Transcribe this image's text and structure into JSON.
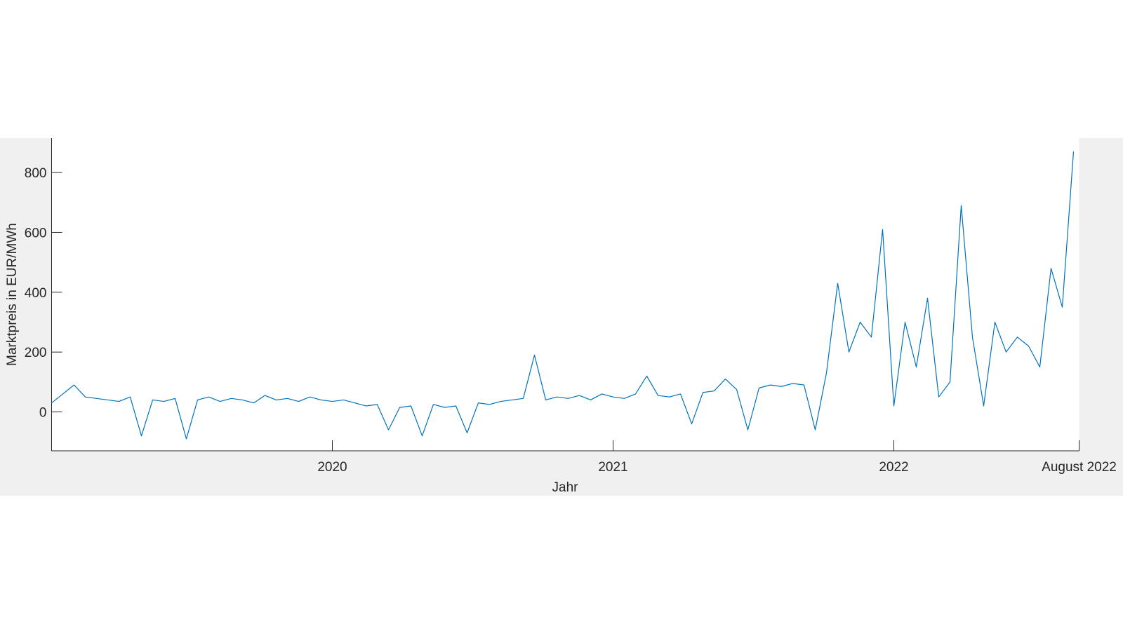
{
  "chart_data": {
    "type": "line",
    "xlabel": "Jahr",
    "ylabel": "Marktpreis in EUR/MWh",
    "x": [
      2019.0,
      2019.04,
      2019.08,
      2019.12,
      2019.16,
      2019.2,
      2019.24,
      2019.28,
      2019.32,
      2019.36,
      2019.4,
      2019.44,
      2019.48,
      2019.52,
      2019.56,
      2019.6,
      2019.64,
      2019.68,
      2019.72,
      2019.76,
      2019.8,
      2019.84,
      2019.88,
      2019.92,
      2019.96,
      2020.0,
      2020.04,
      2020.08,
      2020.12,
      2020.16,
      2020.2,
      2020.24,
      2020.28,
      2020.32,
      2020.36,
      2020.4,
      2020.44,
      2020.48,
      2020.52,
      2020.56,
      2020.6,
      2020.64,
      2020.68,
      2020.72,
      2020.76,
      2020.8,
      2020.84,
      2020.88,
      2020.92,
      2020.96,
      2021.0,
      2021.04,
      2021.08,
      2021.12,
      2021.16,
      2021.2,
      2021.24,
      2021.28,
      2021.32,
      2021.36,
      2021.4,
      2021.44,
      2021.48,
      2021.52,
      2021.56,
      2021.6,
      2021.64,
      2021.68,
      2021.72,
      2021.76,
      2021.8,
      2021.84,
      2021.88,
      2021.92,
      2021.96,
      2022.0,
      2022.04,
      2022.08,
      2022.12,
      2022.16,
      2022.2,
      2022.24,
      2022.28,
      2022.32,
      2022.36,
      2022.4,
      2022.44,
      2022.48,
      2022.52,
      2022.56,
      2022.6,
      2022.64
    ],
    "series": [
      {
        "color": "#0072bd",
        "values": [
          30,
          60,
          90,
          50,
          45,
          40,
          35,
          50,
          -80,
          40,
          35,
          45,
          -90,
          40,
          50,
          35,
          45,
          40,
          30,
          55,
          40,
          45,
          35,
          50,
          40,
          35,
          40,
          30,
          20,
          25,
          -60,
          15,
          20,
          -80,
          25,
          15,
          20,
          -70,
          30,
          25,
          35,
          40,
          45,
          190,
          40,
          50,
          45,
          55,
          40,
          60,
          50,
          45,
          60,
          120,
          55,
          50,
          60,
          -40,
          65,
          70,
          110,
          75,
          -60,
          80,
          90,
          85,
          95,
          90,
          -60,
          130,
          430,
          200,
          300,
          250,
          610,
          20,
          300,
          150,
          380,
          50,
          100,
          690,
          250,
          20,
          300,
          200,
          250,
          220,
          150,
          480,
          350,
          870
        ]
      }
    ],
    "xlim": [
      2019.0,
      2022.66
    ],
    "xticks": [
      2020,
      2021,
      2022,
      {
        "value": 2022.66,
        "label": "August 2022"
      }
    ],
    "ylim": [
      -130,
      915
    ],
    "yticks": [
      0,
      200,
      400,
      600,
      800
    ]
  }
}
